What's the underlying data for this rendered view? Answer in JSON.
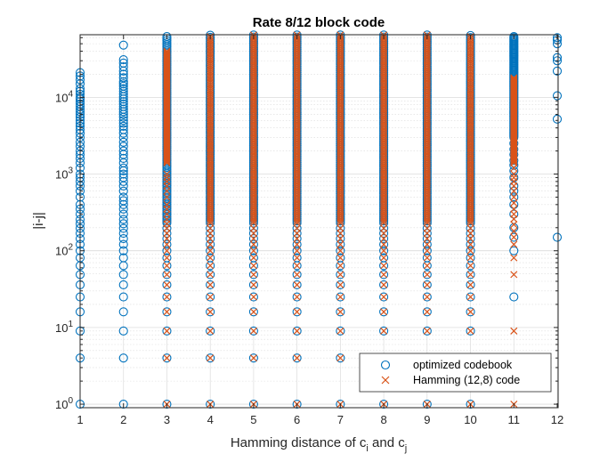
{
  "chart_data": {
    "type": "scatter",
    "title": "Rate 8/12 block code",
    "xlabel": {
      "text": "Hamming distance of c",
      "sub1": "i",
      "mid": " and c",
      "sub2": "j"
    },
    "ylabel": "|i-j|",
    "yscale": "log",
    "xlim": [
      1,
      12
    ],
    "ylim": [
      0.9,
      65535
    ],
    "xticks": [
      "1",
      "2",
      "3",
      "4",
      "5",
      "6",
      "7",
      "8",
      "9",
      "10",
      "11",
      "12"
    ],
    "yticks": [
      {
        "value": 1,
        "base": "10",
        "exp": "0"
      },
      {
        "value": 10,
        "base": "10",
        "exp": "1"
      },
      {
        "value": 100,
        "base": "10",
        "exp": "2"
      },
      {
        "value": 1000,
        "base": "10",
        "exp": "3"
      },
      {
        "value": 10000,
        "base": "10",
        "exp": "4"
      }
    ],
    "grid": true,
    "legend_position": "bottom-right",
    "colors": {
      "optimized": "#0072BD",
      "hamming": "#D95319",
      "axis": "#262626",
      "grid": "#dcdcdc"
    },
    "series": [
      {
        "name": "optimized codebook",
        "marker": "circle",
        "columns": [
          {
            "x": 1,
            "points": [
              1,
              4,
              9,
              16,
              25,
              36,
              49,
              64,
              81,
              100,
              121,
              144,
              169,
              196,
              225,
              256,
              300,
              350,
              400,
              500,
              600,
              700,
              800,
              900,
              1000,
              1200,
              1400,
              1600,
              1800,
              2000,
              2300,
              2600,
              3000,
              3400,
              3800,
              4200,
              4600,
              5000,
              5500,
              6000,
              6500,
              7000,
              7600,
              8200,
              8800,
              9500,
              10000,
              11000,
              12000,
              13000,
              15000,
              17000,
              19000,
              21000
            ]
          },
          {
            "x": 2,
            "points": [
              1,
              4,
              9,
              16,
              25,
              36,
              49,
              64,
              81,
              100,
              121,
              144,
              169,
              196,
              225,
              256,
              300,
              350,
              400,
              450,
              500,
              600,
              700,
              800,
              900,
              1000,
              1100,
              1200,
              1400,
              1600,
              1800,
              2000,
              2300,
              2600,
              3000,
              3400,
              3800,
              4200,
              4600,
              5000,
              5500,
              6000,
              6500,
              7000,
              7600,
              8200,
              8800,
              9500,
              10200,
              11000,
              12000,
              13000,
              14000,
              15000,
              16000,
              18000,
              20000,
              22000,
              25000,
              28000,
              31000,
              48000
            ]
          },
          {
            "x": 3,
            "dense_from": 230,
            "dense_to": 62000,
            "points": [
              1,
              4,
              9,
              16,
              25,
              36,
              49,
              64,
              81,
              100,
              121,
              144,
              169,
              196
            ]
          },
          {
            "x": 4,
            "dense_from": 230,
            "dense_to": 64500,
            "points": [
              1,
              4,
              9,
              16,
              25,
              36,
              49,
              64,
              81,
              100,
              121,
              144,
              169,
              196
            ]
          },
          {
            "x": 5,
            "dense_from": 230,
            "dense_to": 65000,
            "points": [
              1,
              4,
              9,
              16,
              25,
              36,
              49,
              64,
              81,
              100,
              121,
              144,
              169,
              196
            ]
          },
          {
            "x": 6,
            "dense_from": 230,
            "dense_to": 65000,
            "points": [
              1,
              4,
              9,
              16,
              25,
              36,
              49,
              64,
              81,
              100,
              121,
              144,
              169,
              196
            ]
          },
          {
            "x": 7,
            "dense_from": 230,
            "dense_to": 65000,
            "points": [
              1,
              4,
              9,
              16,
              25,
              36,
              49,
              64,
              81,
              100,
              121,
              144,
              169,
              196
            ]
          },
          {
            "x": 8,
            "dense_from": 230,
            "dense_to": 65000,
            "points": [
              1,
              9,
              16,
              25,
              36,
              49,
              64,
              81,
              100,
              121,
              144,
              169,
              196
            ]
          },
          {
            "x": 9,
            "dense_from": 230,
            "dense_to": 65000,
            "points": [
              1,
              9,
              16,
              25,
              36,
              49,
              64,
              81,
              100,
              121,
              144,
              169,
              196
            ]
          },
          {
            "x": 10,
            "dense_from": 230,
            "dense_to": 64000,
            "points": [
              1,
              9,
              16,
              25,
              36,
              49,
              64,
              81,
              100,
              121,
              144,
              169,
              196
            ]
          },
          {
            "x": 11,
            "dense_from": 3000,
            "dense_to": 62000,
            "points": [
              25,
              100,
              150,
              200,
              300,
              400,
              500,
              600,
              700,
              900,
              1100,
              1300,
              1500,
              1800,
              2100,
              2500
            ]
          },
          {
            "x": 12,
            "points": [
              150,
              5200,
              10500,
              22000,
              30000,
              33000,
              50000,
              56000,
              60000
            ]
          }
        ]
      },
      {
        "name": "Hamming (12,8) code",
        "marker": "x",
        "columns": [
          {
            "x": 3,
            "dense_from": 1400,
            "dense_to": 40000,
            "points": [
              1,
              4,
              9,
              16,
              25,
              36,
              49,
              64,
              81,
              100,
              121,
              144,
              169,
              196,
              225,
              256,
              300,
              350,
              400,
              500,
              600,
              700,
              800,
              900,
              1000
            ]
          },
          {
            "x": 4,
            "dense_from": 230,
            "dense_to": 62000,
            "points": [
              1,
              4,
              9,
              16,
              25,
              36,
              49,
              64,
              81,
              100,
              121,
              144,
              169,
              196
            ]
          },
          {
            "x": 5,
            "dense_from": 230,
            "dense_to": 65000,
            "points": [
              1,
              4,
              9,
              16,
              25,
              36,
              49,
              64,
              81,
              100,
              121,
              144,
              169,
              196
            ]
          },
          {
            "x": 6,
            "dense_from": 230,
            "dense_to": 65000,
            "points": [
              1,
              4,
              9,
              16,
              25,
              36,
              49,
              64,
              81,
              100,
              121,
              144,
              169,
              196
            ]
          },
          {
            "x": 7,
            "dense_from": 230,
            "dense_to": 65000,
            "points": [
              1,
              4,
              9,
              16,
              25,
              36,
              49,
              64,
              81,
              100,
              121,
              144,
              169,
              196
            ]
          },
          {
            "x": 8,
            "dense_from": 230,
            "dense_to": 65000,
            "points": [
              1,
              9,
              16,
              25,
              36,
              49,
              64,
              81,
              100,
              121,
              144,
              169,
              196
            ]
          },
          {
            "x": 9,
            "dense_from": 230,
            "dense_to": 65000,
            "points": [
              1,
              9,
              16,
              25,
              36,
              49,
              64,
              81,
              100,
              121,
              144,
              169,
              196
            ]
          },
          {
            "x": 10,
            "dense_from": 230,
            "dense_to": 62000,
            "points": [
              1,
              9,
              16,
              25,
              36,
              49,
              64,
              81,
              100,
              121,
              144,
              169,
              196
            ]
          },
          {
            "x": 11,
            "dense_from": 1400,
            "dense_to": 18000,
            "points": [
              1,
              9,
              49,
              81,
              121,
              150,
              180,
              220,
              260,
              300,
              350,
              420,
              500,
              600,
              700,
              800,
              900,
              1000,
              1200
            ]
          }
        ]
      }
    ]
  }
}
